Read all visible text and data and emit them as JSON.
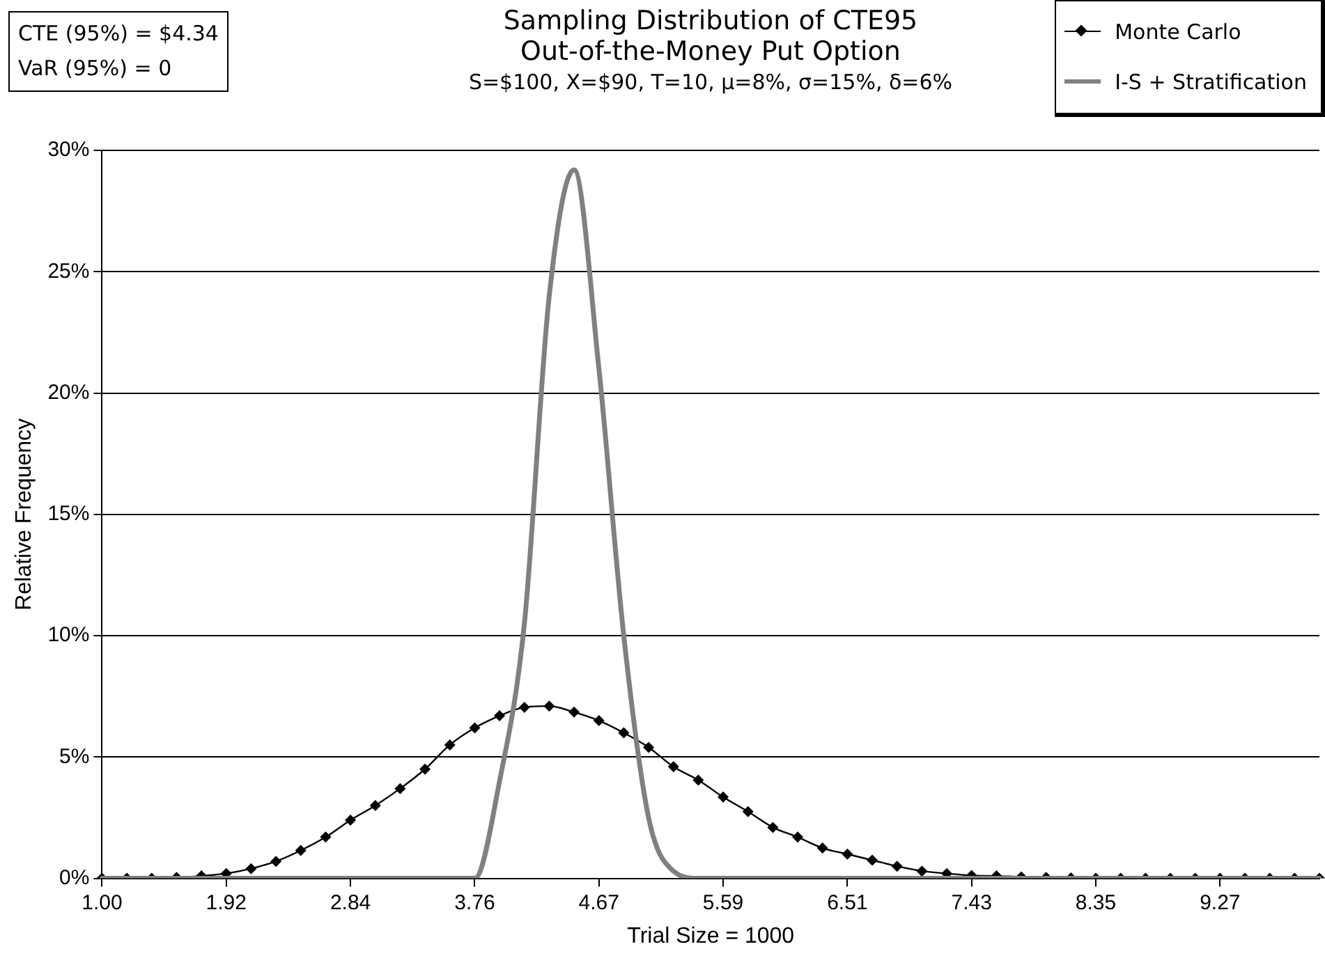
{
  "chart_data": {
    "type": "line",
    "title": "Sampling Distribution of CTE95\nOut-of-the-Money Put Option",
    "subtitle": "S=$100, X=$90, T=10, μ=8%, σ=15%, δ=6%",
    "xlabel": "Trial Size = 1000",
    "ylabel": "Relative Frequency",
    "annotations": [
      "CTE (95%) = $4.34",
      "VaR (95%) = 0"
    ],
    "categories": [
      "1.00",
      null,
      null,
      null,
      null,
      "1.92",
      null,
      null,
      null,
      null,
      "2.84",
      null,
      null,
      null,
      null,
      "3.76",
      null,
      null,
      null,
      null,
      "4.67",
      null,
      null,
      null,
      null,
      "5.59",
      null,
      null,
      null,
      null,
      "6.51",
      null,
      null,
      null,
      null,
      "7.43",
      null,
      null,
      null,
      null,
      "8.35",
      null,
      null,
      null,
      null,
      "9.27",
      null,
      null,
      null,
      null
    ],
    "series": [
      {
        "name": "Monte Carlo",
        "color": "#000000",
        "marker": "diamond",
        "values": [
          0,
          0,
          0,
          0.04,
          0.1,
          0.2,
          0.4,
          0.7,
          1.15,
          1.7,
          2.4,
          3.0,
          3.7,
          4.5,
          5.5,
          6.2,
          6.7,
          7.05,
          7.1,
          6.85,
          6.5,
          6.0,
          5.4,
          4.6,
          4.05,
          3.35,
          2.75,
          2.1,
          1.7,
          1.25,
          1.0,
          0.75,
          0.5,
          0.3,
          0.2,
          0.12,
          0.1,
          0.06,
          0.04,
          0.02,
          0,
          0,
          0,
          0,
          0,
          0,
          0,
          0,
          0,
          0
        ]
      },
      {
        "name": "I-S + Stratification",
        "color": "#808080",
        "marker": "none",
        "values": [
          0,
          0,
          0,
          0,
          0,
          0,
          0,
          0,
          0,
          0,
          0,
          0,
          0,
          0,
          0,
          0,
          4,
          10.5,
          24,
          29.2,
          21,
          10,
          2.5,
          0.3,
          0,
          0,
          0,
          0,
          0,
          0,
          0,
          0,
          0,
          0,
          0,
          0,
          0,
          0,
          0,
          0,
          0,
          0,
          0,
          0,
          0,
          0,
          0,
          0,
          0,
          0
        ]
      }
    ],
    "ylim": [
      0,
      30
    ],
    "yticks": [
      {
        "value": 0,
        "label": "0%"
      },
      {
        "value": 5,
        "label": "5%"
      },
      {
        "value": 10,
        "label": "10%"
      },
      {
        "value": 15,
        "label": "15%"
      },
      {
        "value": 20,
        "label": "20%"
      },
      {
        "value": 25,
        "label": "25%"
      },
      {
        "value": 30,
        "label": "30%"
      }
    ],
    "grid": "y",
    "legend": "top right",
    "line_style": "solid"
  }
}
